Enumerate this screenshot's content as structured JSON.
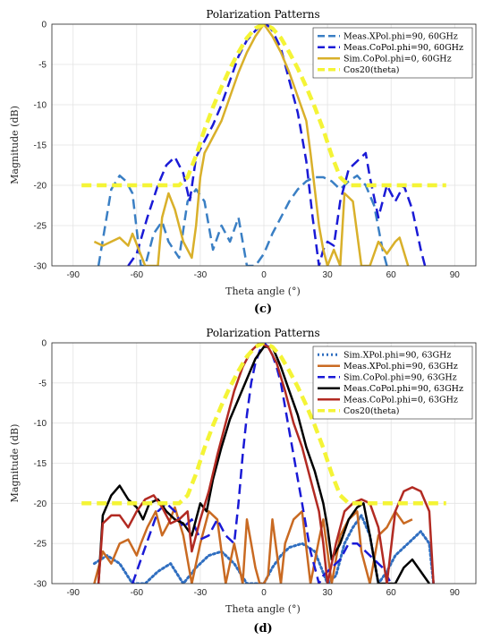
{
  "chart_data": [
    {
      "type": "line",
      "title": "Polarization Patterns",
      "xlabel": "Theta angle (°)",
      "ylabel": "Magnitude (dB)",
      "panel_label": "(c)",
      "xlim": [
        -100,
        100
      ],
      "ylim": [
        -30,
        0
      ],
      "xticks": [
        "-90",
        "-60",
        "-30",
        "0",
        "30",
        "60",
        "90"
      ],
      "yticks": [
        "0",
        "-5",
        "-10",
        "-15",
        "-20",
        "-25",
        "-30"
      ],
      "grid": true,
      "legend_position": "top-right",
      "series": [
        {
          "name": "Meas.XPol.phi=90, 60GHz",
          "color": "#3a7fc4",
          "style": "dashed",
          "width": 2.5,
          "x": [
            -78,
            -72,
            -68,
            -65,
            -62,
            -58,
            -56,
            -52,
            -48,
            -45,
            -40,
            -36,
            -32,
            -28,
            -24,
            -20,
            -16,
            -12,
            -8,
            -4,
            0,
            4,
            8,
            12,
            16,
            20,
            24,
            28,
            32,
            36,
            40,
            44,
            48,
            52,
            56,
            58
          ],
          "y": [
            -30,
            -20.5,
            -18.8,
            -19.5,
            -21,
            -30,
            -30,
            -26,
            -24.5,
            -27,
            -29,
            -22,
            -20.5,
            -22,
            -28,
            -25,
            -27,
            -24,
            -30,
            -30,
            -28.5,
            -26,
            -24,
            -22,
            -20.5,
            -19.5,
            -19,
            -19,
            -19.5,
            -20.5,
            -19.5,
            -18.8,
            -20,
            -22.5,
            -28,
            -30
          ]
        },
        {
          "name": "Meas.CoPol.phi=90, 60GHz",
          "color": "#1a1ad6",
          "style": "dashed",
          "width": 2.5,
          "x": [
            -64,
            -60,
            -55,
            -50,
            -46,
            -42,
            -38,
            -35,
            -32,
            -28,
            -24,
            -20,
            -16,
            -12,
            -8,
            -4,
            -2,
            0,
            2,
            4,
            8,
            12,
            16,
            20,
            23,
            26,
            28,
            30,
            33,
            36,
            40,
            44,
            48,
            50,
            54,
            58,
            62,
            66,
            70,
            74,
            76
          ],
          "y": [
            -30,
            -28.5,
            -24,
            -20,
            -17.5,
            -16.5,
            -18.5,
            -22,
            -16.5,
            -14.5,
            -12.5,
            -10,
            -7,
            -4,
            -2,
            -0.8,
            -0.3,
            0,
            -0.2,
            -0.8,
            -3,
            -7,
            -11,
            -17,
            -24,
            -30,
            -28,
            -27,
            -27.5,
            -22,
            -18,
            -17,
            -16,
            -19,
            -24,
            -20,
            -22,
            -20,
            -23,
            -28,
            -30
          ]
        },
        {
          "name": "Sim.CoPol.phi=0, 60GHz",
          "color": "#d9b02a",
          "style": "solid",
          "width": 2.5,
          "x": [
            -80,
            -76,
            -72,
            -68,
            -64,
            -62,
            -56,
            -50,
            -48,
            -45,
            -42,
            -38,
            -34,
            -32,
            -30,
            -28,
            -26,
            -24,
            -20,
            -16,
            -12,
            -8,
            -4,
            0,
            4,
            8,
            12,
            16,
            20,
            22,
            24,
            26,
            28,
            30,
            33,
            36,
            38,
            42,
            46,
            50,
            54,
            58,
            62,
            64,
            68
          ],
          "y": [
            -27,
            -27.5,
            -27,
            -26.5,
            -27.5,
            -26,
            -30,
            -30,
            -24,
            -21,
            -23,
            -27,
            -29,
            -25,
            -19,
            -16,
            -15,
            -14,
            -12,
            -9,
            -6,
            -3.5,
            -1.5,
            0,
            -1.5,
            -3.5,
            -6,
            -9,
            -12,
            -16,
            -20.5,
            -25,
            -28,
            -30,
            -28,
            -30,
            -21,
            -22,
            -30,
            -30,
            -27,
            -28.5,
            -27,
            -26.5,
            -30
          ]
        },
        {
          "name": "Cos20(theta)",
          "color": "#f4f436",
          "style": "dashed",
          "width": 4.5,
          "x": [
            -86,
            -50,
            -44,
            -40,
            -36,
            -32,
            -28,
            -24,
            -20,
            -16,
            -12,
            -8,
            -4,
            0,
            4,
            8,
            12,
            16,
            20,
            24,
            28,
            32,
            36,
            40,
            44,
            50,
            86
          ],
          "y": [
            -20,
            -20,
            -20,
            -20,
            -19,
            -16.3,
            -13.1,
            -10.3,
            -7.8,
            -5.5,
            -3.5,
            -1.7,
            -0.5,
            0,
            -0.5,
            -1.7,
            -3.5,
            -5.5,
            -7.8,
            -10.3,
            -13.1,
            -16.3,
            -19,
            -20,
            -20,
            -20,
            -20
          ]
        }
      ]
    },
    {
      "type": "line",
      "title": "Polarization Patterns",
      "xlabel": "Theta angle (°)",
      "ylabel": "Magnitude (dB)",
      "panel_label": "(d)",
      "xlim": [
        -100,
        100
      ],
      "ylim": [
        -30,
        0
      ],
      "xticks": [
        "-90",
        "-60",
        "-30",
        "0",
        "30",
        "60",
        "90"
      ],
      "yticks": [
        "0",
        "-5",
        "-10",
        "-15",
        "-20",
        "-25",
        "-30"
      ],
      "grid": true,
      "legend_position": "top-right",
      "series": [
        {
          "name": "Sim.XPol.phi=90, 63GHz",
          "color": "#2f6ec0",
          "style": "dotted",
          "width": 3,
          "x": [
            -80,
            -74,
            -68,
            -62,
            -56,
            -50,
            -44,
            -38,
            -32,
            -26,
            -20,
            -14,
            -8,
            -4,
            0,
            4,
            8,
            12,
            18,
            24,
            30,
            34,
            38,
            42,
            46,
            50,
            54,
            58,
            62,
            66,
            70,
            74,
            78,
            80
          ],
          "y": [
            -27.5,
            -26.5,
            -27.5,
            -30,
            -30,
            -28.5,
            -27.5,
            -30,
            -28,
            -26.5,
            -26,
            -27.5,
            -30,
            -30,
            -30,
            -28,
            -26.5,
            -25.5,
            -25,
            -26,
            -30,
            -29,
            -25,
            -23,
            -21.5,
            -24,
            -30,
            -28.5,
            -26.5,
            -25.5,
            -24.5,
            -23.5,
            -25,
            -30
          ]
        },
        {
          "name": "Meas.XPol.phi=90, 63GHz",
          "color": "#c96a22",
          "style": "solid",
          "width": 2.5,
          "x": [
            -80,
            -76,
            -72,
            -68,
            -64,
            -60,
            -58,
            -55,
            -51,
            -48,
            -45,
            -42,
            -38,
            -34,
            -30,
            -26,
            -22,
            -18,
            -14,
            -10,
            -8,
            -6,
            -4,
            -2,
            0,
            2,
            4,
            8,
            10,
            14,
            18,
            22,
            26,
            28,
            32,
            36,
            40,
            44,
            46,
            50,
            54,
            58,
            62,
            66,
            70
          ],
          "y": [
            -30,
            -26,
            -27.5,
            -25,
            -24.5,
            -26.5,
            -25,
            -23,
            -21,
            -24,
            -22.5,
            -20.5,
            -24,
            -30,
            -25,
            -21,
            -22,
            -30,
            -25,
            -30,
            -22,
            -25,
            -28,
            -30,
            -30,
            -29,
            -22,
            -30,
            -25,
            -22,
            -21,
            -30,
            -24.5,
            -22,
            -30,
            -24,
            -22,
            -21,
            -26,
            -30,
            -24,
            -23,
            -21,
            -22.5,
            -22
          ]
        },
        {
          "name": "Sim.CoPol.phi=90, 63GHz",
          "color": "#1a1ad6",
          "style": "dashed",
          "width": 2.5,
          "x": [
            -62,
            -58,
            -54,
            -50,
            -46,
            -42,
            -38,
            -34,
            -30,
            -26,
            -22,
            -18,
            -14,
            -12,
            -10,
            -8,
            -6,
            -4,
            -2,
            0,
            2,
            4,
            6,
            8,
            10,
            12,
            14,
            16,
            18,
            20,
            22,
            24,
            26,
            28,
            32,
            36,
            40,
            44,
            48,
            52,
            56,
            60
          ],
          "y": [
            -30,
            -27,
            -24,
            -21,
            -20,
            -21,
            -23,
            -22,
            -24.5,
            -24,
            -22,
            -24,
            -25,
            -20,
            -14,
            -9,
            -5,
            -2.5,
            -1,
            0,
            -0.5,
            -1.5,
            -3,
            -5,
            -8,
            -11,
            -14,
            -17,
            -20,
            -23,
            -26,
            -28,
            -30,
            -29,
            -28,
            -27,
            -25,
            -25,
            -26,
            -27,
            -28,
            -30
          ]
        },
        {
          "name": "Meas.CoPol.phi=90, 63GHz",
          "color": "#000000",
          "style": "solid",
          "width": 2.5,
          "x": [
            -78,
            -76,
            -72,
            -68,
            -64,
            -60,
            -57,
            -54,
            -50,
            -46,
            -42,
            -38,
            -34,
            -30,
            -27,
            -24,
            -20,
            -16,
            -12,
            -8,
            -4,
            0,
            4,
            8,
            12,
            16,
            20,
            24,
            28,
            30,
            32,
            36,
            40,
            44,
            47,
            50,
            54,
            58,
            62,
            66,
            70,
            74,
            78
          ],
          "y": [
            -30,
            -21.5,
            -19,
            -17.8,
            -19.5,
            -20.5,
            -22,
            -20,
            -19.5,
            -21,
            -22,
            -22.5,
            -24,
            -20,
            -21,
            -17,
            -13,
            -9.5,
            -7,
            -4.5,
            -2,
            -0.5,
            -0.5,
            -3,
            -6,
            -9,
            -13,
            -16,
            -20,
            -23,
            -27,
            -25,
            -22,
            -20.5,
            -20,
            -24,
            -30,
            -30,
            -30,
            -28,
            -27,
            -28.5,
            -30
          ]
        },
        {
          "name": "Meas.CoPol.phi=0, 63GHz",
          "color": "#b22a22",
          "style": "solid",
          "width": 2.5,
          "x": [
            -78,
            -76,
            -72,
            -68,
            -64,
            -60,
            -56,
            -52,
            -48,
            -44,
            -40,
            -36,
            -34,
            -30,
            -26,
            -22,
            -18,
            -14,
            -10,
            -6,
            -2,
            2,
            6,
            10,
            14,
            18,
            22,
            26,
            28,
            30,
            34,
            38,
            42,
            46,
            50,
            54,
            58,
            62,
            66,
            70,
            74,
            78,
            80
          ],
          "y": [
            -30,
            -22.5,
            -21.5,
            -21.5,
            -23,
            -21,
            -19.5,
            -19,
            -20.5,
            -22.5,
            -22,
            -21,
            -26,
            -22,
            -18.5,
            -14,
            -10,
            -6,
            -3,
            -1,
            0,
            -0.5,
            -2.5,
            -6,
            -10,
            -13,
            -17,
            -21,
            -25,
            -30,
            -25,
            -21,
            -20,
            -19.5,
            -20,
            -23,
            -30,
            -21,
            -18.5,
            -18,
            -18.5,
            -21,
            -30
          ]
        },
        {
          "name": "Cos20(theta)",
          "color": "#f4f436",
          "style": "dashed",
          "width": 4.5,
          "x": [
            -86,
            -50,
            -44,
            -40,
            -36,
            -32,
            -28,
            -24,
            -20,
            -16,
            -12,
            -8,
            -4,
            0,
            4,
            8,
            12,
            16,
            20,
            24,
            28,
            32,
            36,
            40,
            44,
            50,
            86
          ],
          "y": [
            -20,
            -20,
            -20,
            -20,
            -19,
            -16.3,
            -13.1,
            -10.3,
            -7.8,
            -5.5,
            -3.5,
            -1.7,
            -0.5,
            0,
            -0.5,
            -1.7,
            -3.5,
            -5.5,
            -7.8,
            -10.3,
            -13.1,
            -16.3,
            -19,
            -20,
            -20,
            -20,
            -20
          ]
        }
      ]
    }
  ]
}
